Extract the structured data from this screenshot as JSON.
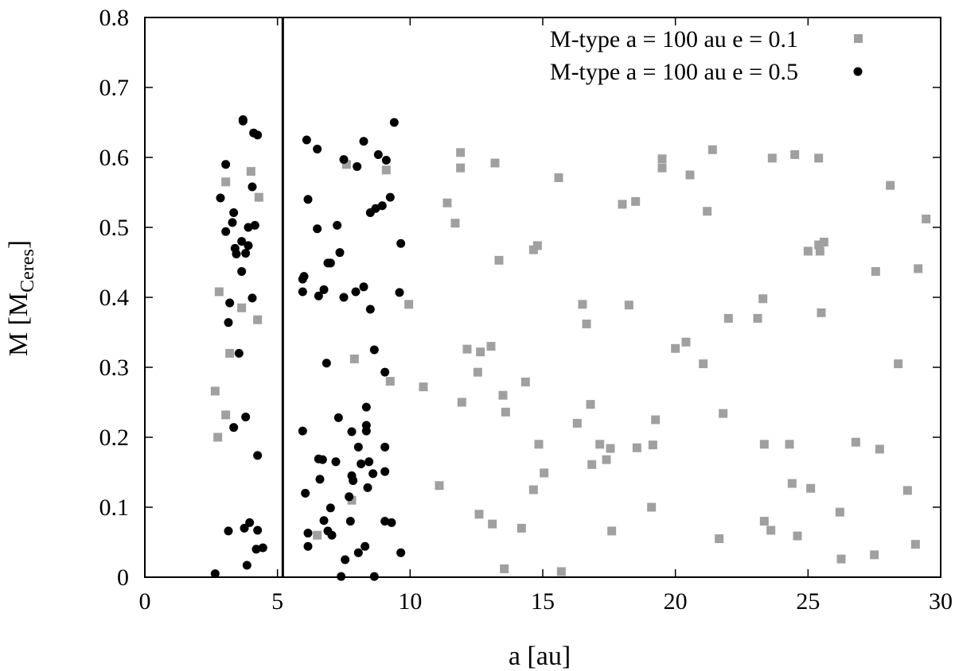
{
  "chart_data": {
    "type": "scatter",
    "title": "",
    "xlabel": "a [au]",
    "ylabel": {
      "main": "M [M",
      "sub": "Ceres",
      "close": "]"
    },
    "xlim": [
      0,
      30
    ],
    "ylim": [
      0,
      0.8
    ],
    "xticks": [
      0,
      5,
      10,
      15,
      20,
      25,
      30
    ],
    "yticks": [
      0,
      0.1,
      0.2,
      0.3,
      0.4,
      0.5,
      0.6,
      0.7,
      0.8
    ],
    "xtick_labels": [
      "0",
      "5",
      "10",
      "15",
      "20",
      "25",
      "30"
    ],
    "ytick_labels": [
      "0",
      "0.1",
      "0.2",
      "0.3",
      "0.4",
      "0.5",
      "0.6",
      "0.7",
      "0.8"
    ],
    "grid": false,
    "legend_position": "top-right",
    "vertical_line_x": 5.2,
    "series": [
      {
        "name": "M-type a = 100 au e = 0.1",
        "marker": "square",
        "color": "#a0a0a0",
        "points": [
          [
            2.65,
            0.266
          ],
          [
            2.8,
            0.408
          ],
          [
            2.75,
            0.2
          ],
          [
            3.05,
            0.565
          ],
          [
            3.05,
            0.232
          ],
          [
            3.2,
            0.32
          ],
          [
            3.65,
            0.385
          ],
          [
            4.0,
            0.58
          ],
          [
            4.3,
            0.543
          ],
          [
            4.25,
            0.368
          ],
          [
            6.5,
            0.06
          ],
          [
            7.6,
            0.59
          ],
          [
            7.9,
            0.312
          ],
          [
            7.8,
            0.11
          ],
          [
            9.1,
            0.582
          ],
          [
            9.25,
            0.28
          ],
          [
            9.95,
            0.39
          ],
          [
            10.5,
            0.272
          ],
          [
            11.1,
            0.131
          ],
          [
            11.4,
            0.535
          ],
          [
            11.7,
            0.506
          ],
          [
            11.9,
            0.607
          ],
          [
            11.9,
            0.585
          ],
          [
            11.95,
            0.25
          ],
          [
            12.15,
            0.326
          ],
          [
            12.55,
            0.293
          ],
          [
            12.65,
            0.322
          ],
          [
            12.6,
            0.09
          ],
          [
            13.05,
            0.33
          ],
          [
            13.1,
            0.076
          ],
          [
            13.2,
            0.592
          ],
          [
            13.35,
            0.453
          ],
          [
            13.5,
            0.26
          ],
          [
            13.6,
            0.236
          ],
          [
            13.55,
            0.012
          ],
          [
            14.2,
            0.07
          ],
          [
            14.35,
            0.279
          ],
          [
            14.65,
            0.125
          ],
          [
            14.65,
            0.468
          ],
          [
            14.8,
            0.474
          ],
          [
            14.85,
            0.19
          ],
          [
            15.05,
            0.149
          ],
          [
            15.6,
            0.571
          ],
          [
            15.7,
            0.008
          ],
          [
            16.3,
            0.22
          ],
          [
            16.5,
            0.39
          ],
          [
            16.65,
            0.362
          ],
          [
            16.8,
            0.247
          ],
          [
            16.85,
            0.161
          ],
          [
            17.15,
            0.19
          ],
          [
            17.4,
            0.168
          ],
          [
            17.55,
            0.184
          ],
          [
            17.6,
            0.066
          ],
          [
            18.0,
            0.533
          ],
          [
            18.25,
            0.389
          ],
          [
            18.5,
            0.537
          ],
          [
            18.55,
            0.185
          ],
          [
            19.1,
            0.1
          ],
          [
            19.15,
            0.189
          ],
          [
            19.25,
            0.225
          ],
          [
            19.5,
            0.598
          ],
          [
            19.5,
            0.585
          ],
          [
            20.0,
            0.327
          ],
          [
            20.4,
            0.336
          ],
          [
            20.55,
            0.575
          ],
          [
            21.05,
            0.305
          ],
          [
            21.2,
            0.523
          ],
          [
            21.4,
            0.611
          ],
          [
            21.65,
            0.055
          ],
          [
            21.8,
            0.234
          ],
          [
            22.0,
            0.37
          ],
          [
            23.1,
            0.37
          ],
          [
            23.3,
            0.398
          ],
          [
            23.35,
            0.19
          ],
          [
            23.35,
            0.08
          ],
          [
            23.6,
            0.067
          ],
          [
            23.65,
            0.599
          ],
          [
            24.3,
            0.19
          ],
          [
            24.4,
            0.134
          ],
          [
            24.5,
            0.604
          ],
          [
            24.6,
            0.059
          ],
          [
            25.0,
            0.466
          ],
          [
            25.1,
            0.127
          ],
          [
            25.4,
            0.475
          ],
          [
            25.4,
            0.599
          ],
          [
            25.45,
            0.466
          ],
          [
            25.5,
            0.378
          ],
          [
            25.6,
            0.479
          ],
          [
            26.2,
            0.093
          ],
          [
            26.25,
            0.026
          ],
          [
            26.8,
            0.193
          ],
          [
            27.5,
            0.032
          ],
          [
            27.55,
            0.437
          ],
          [
            27.7,
            0.183
          ],
          [
            28.1,
            0.56
          ],
          [
            28.4,
            0.305
          ],
          [
            28.75,
            0.124
          ],
          [
            29.05,
            0.047
          ],
          [
            29.15,
            0.441
          ],
          [
            29.45,
            0.512
          ]
        ]
      },
      {
        "name": "M-type a = 100 au e = 0.5",
        "marker": "circle",
        "color": "#000000",
        "points": [
          [
            2.65,
            0.005
          ],
          [
            2.85,
            0.542
          ],
          [
            3.05,
            0.59
          ],
          [
            3.05,
            0.494
          ],
          [
            3.15,
            0.066
          ],
          [
            3.2,
            0.392
          ],
          [
            3.15,
            0.364
          ],
          [
            3.3,
            0.507
          ],
          [
            3.35,
            0.521
          ],
          [
            3.35,
            0.214
          ],
          [
            3.4,
            0.47
          ],
          [
            3.45,
            0.462
          ],
          [
            3.55,
            0.32
          ],
          [
            3.65,
            0.48
          ],
          [
            3.65,
            0.437
          ],
          [
            3.7,
            0.652
          ],
          [
            3.7,
            0.654
          ],
          [
            3.75,
            0.07
          ],
          [
            3.8,
            0.463
          ],
          [
            3.8,
            0.229
          ],
          [
            3.85,
            0.017
          ],
          [
            3.9,
            0.474
          ],
          [
            3.9,
            0.5
          ],
          [
            3.95,
            0.078
          ],
          [
            4.05,
            0.558
          ],
          [
            4.05,
            0.399
          ],
          [
            4.1,
            0.635
          ],
          [
            4.15,
            0.503
          ],
          [
            4.2,
            0.04
          ],
          [
            4.25,
            0.632
          ],
          [
            4.25,
            0.174
          ],
          [
            4.25,
            0.067
          ],
          [
            4.45,
            0.042
          ],
          [
            5.95,
            0.408
          ],
          [
            5.95,
            0.426
          ],
          [
            5.95,
            0.209
          ],
          [
            6.0,
            0.43
          ],
          [
            6.05,
            0.12
          ],
          [
            6.1,
            0.625
          ],
          [
            6.15,
            0.54
          ],
          [
            6.15,
            0.063
          ],
          [
            6.15,
            0.044
          ],
          [
            6.5,
            0.612
          ],
          [
            6.5,
            0.498
          ],
          [
            6.55,
            0.402
          ],
          [
            6.55,
            0.169
          ],
          [
            6.6,
            0.14
          ],
          [
            6.7,
            0.168
          ],
          [
            6.75,
            0.411
          ],
          [
            6.75,
            0.081
          ],
          [
            6.85,
            0.306
          ],
          [
            6.9,
            0.449
          ],
          [
            6.9,
            0.066
          ],
          [
            7.0,
            0.449
          ],
          [
            7.0,
            0.099
          ],
          [
            7.05,
            0.06
          ],
          [
            7.2,
            0.165
          ],
          [
            7.25,
            0.503
          ],
          [
            7.3,
            0.228
          ],
          [
            7.35,
            0.464
          ],
          [
            7.4,
            0.001
          ],
          [
            7.5,
            0.597
          ],
          [
            7.5,
            0.4
          ],
          [
            7.55,
            0.025
          ],
          [
            7.7,
            0.115
          ],
          [
            7.75,
            0.08
          ],
          [
            7.8,
            0.208
          ],
          [
            7.8,
            0.145
          ],
          [
            7.85,
            0.138
          ],
          [
            7.95,
            0.408
          ],
          [
            8.0,
            0.587
          ],
          [
            8.05,
            0.186
          ],
          [
            8.05,
            0.035
          ],
          [
            8.15,
            0.162
          ],
          [
            8.25,
            0.623
          ],
          [
            8.25,
            0.415
          ],
          [
            8.3,
            0.044
          ],
          [
            8.35,
            0.243
          ],
          [
            8.35,
            0.217
          ],
          [
            8.35,
            0.209
          ],
          [
            8.4,
            0.128
          ],
          [
            8.45,
            0.165
          ],
          [
            8.5,
            0.521
          ],
          [
            8.5,
            0.383
          ],
          [
            8.6,
            0.148
          ],
          [
            8.65,
            0.001
          ],
          [
            8.65,
            0.325
          ],
          [
            8.7,
            0.527
          ],
          [
            8.8,
            0.604
          ],
          [
            8.95,
            0.531
          ],
          [
            9.05,
            0.293
          ],
          [
            9.05,
            0.186
          ],
          [
            9.05,
            0.151
          ],
          [
            9.05,
            0.08
          ],
          [
            9.1,
            0.596
          ],
          [
            9.25,
            0.543
          ],
          [
            9.3,
            0.078
          ],
          [
            9.4,
            0.65
          ],
          [
            9.6,
            0.407
          ],
          [
            9.65,
            0.477
          ],
          [
            9.65,
            0.035
          ]
        ]
      }
    ]
  }
}
